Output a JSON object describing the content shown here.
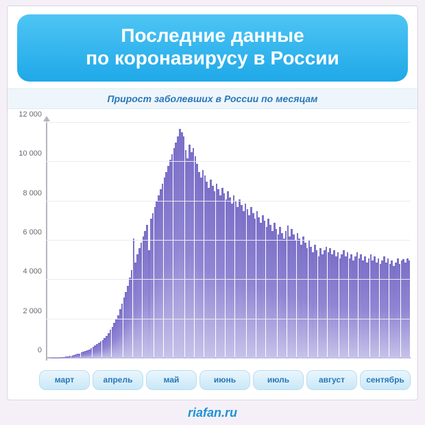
{
  "title": {
    "line1": "Последние данные",
    "line2": "по коронавирусу в России",
    "text_color": "#ffffff",
    "bg_gradient_top": "#4ec5f4",
    "bg_gradient_bottom": "#1fa8e8",
    "fontsize": 28
  },
  "subtitle": {
    "text": "Прирост заболевших в России по месяцам",
    "color": "#2a77b8",
    "bg": "#eef6fc",
    "fontsize": 14
  },
  "chart": {
    "type": "bar",
    "ylim": [
      0,
      12000
    ],
    "ytick_step": 2000,
    "ytick_labels": [
      "0",
      "2 000",
      "4 000",
      "6 000",
      "8 000",
      "10 000",
      "12 000"
    ],
    "axis_color": "#b8b3c0",
    "grid_color": "#eceaf0",
    "label_color": "#6b6573",
    "label_fontsize": 11,
    "bar_gradient_top": "#7a6fc7",
    "bar_gradient_mid": "#8f86d3",
    "bar_gradient_bottom": "#c7c3ea",
    "background_color": "#ffffff",
    "months": [
      "март",
      "апрель",
      "май",
      "июнь",
      "июль",
      "август",
      "сентябрь"
    ],
    "month_pill": {
      "text_color": "#2a77b8",
      "bg_top": "#eaf6fd",
      "bg_bottom": "#c9e8f7",
      "border_color": "#b7ddf0",
      "fontsize": 12
    },
    "values": [
      10,
      15,
      20,
      25,
      30,
      40,
      50,
      60,
      70,
      80,
      90,
      110,
      130,
      150,
      170,
      200,
      230,
      260,
      300,
      340,
      380,
      420,
      470,
      520,
      580,
      650,
      720,
      800,
      880,
      950,
      1050,
      1150,
      1300,
      1450,
      1600,
      1800,
      2000,
      2200,
      2500,
      2800,
      3100,
      3400,
      3700,
      4100,
      4500,
      6100,
      4900,
      5300,
      5600,
      5900,
      6200,
      6500,
      6800,
      5500,
      7100,
      7400,
      7700,
      8000,
      8300,
      8600,
      8900,
      9200,
      9500,
      9800,
      10100,
      10400,
      10700,
      11000,
      11300,
      11700,
      11500,
      11300,
      10600,
      10200,
      10900,
      10500,
      10700,
      10300,
      9900,
      9500,
      9200,
      9600,
      9300,
      9000,
      8700,
      9100,
      8800,
      8500,
      8900,
      8600,
      8300,
      8700,
      8400,
      8100,
      8500,
      8200,
      7900,
      8300,
      8000,
      7700,
      8100,
      7800,
      7500,
      7900,
      7600,
      7300,
      7700,
      7400,
      7100,
      7500,
      7200,
      6900,
      7300,
      7000,
      6700,
      7100,
      6800,
      6500,
      6900,
      6600,
      6300,
      6700,
      6400,
      6100,
      6500,
      6776,
      6200,
      6600,
      6300,
      6000,
      6400,
      6100,
      5800,
      6200,
      5900,
      5600,
      6000,
      5700,
      5400,
      5800,
      5500,
      5200,
      5600,
      5300,
      5500,
      5700,
      5400,
      5600,
      5300,
      5500,
      5200,
      5400,
      5100,
      5300,
      5500,
      5200,
      5400,
      5100,
      5300,
      5000,
      5200,
      5400,
      5100,
      5300,
      5000,
      5200,
      4900,
      5100,
      5300,
      5000,
      5200,
      4900,
      5100,
      4800,
      5000,
      5200,
      4900,
      5100,
      4800,
      5000,
      4700,
      4900,
      5100,
      4800,
      5000,
      5050,
      4900,
      5100,
      5000
    ]
  },
  "footer": {
    "text": "riafan.ru",
    "color": "#1d94d6",
    "fontsize": 18
  },
  "page": {
    "body_bg": "#f5f0f7",
    "card_bg": "#ffffff",
    "card_border": "#d8d5e0"
  }
}
